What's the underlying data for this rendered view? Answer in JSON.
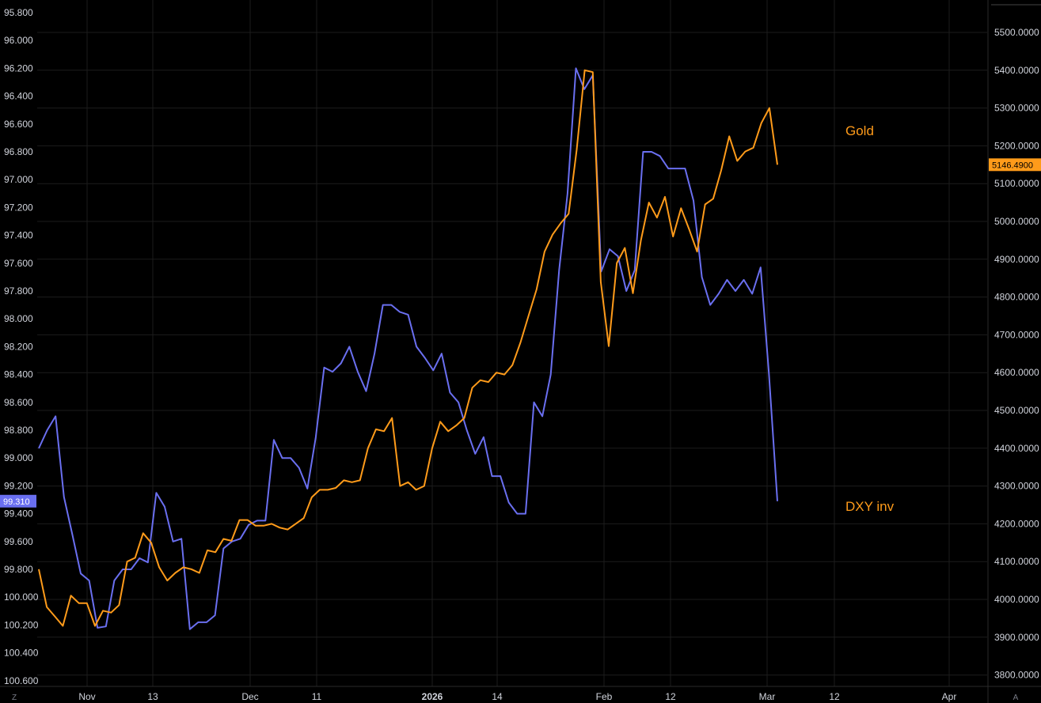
{
  "chart_data": {
    "type": "line",
    "background": "#000000",
    "grid": true,
    "left_axis": {
      "ticks": [
        "95.800",
        "96.000",
        "96.200",
        "96.400",
        "96.600",
        "96.800",
        "97.000",
        "97.200",
        "97.400",
        "97.600",
        "97.800",
        "98.000",
        "98.200",
        "98.400",
        "98.600",
        "98.800",
        "99.000",
        "99.200",
        "99.400",
        "99.600",
        "99.800",
        "100.000",
        "100.200",
        "100.400",
        "100.600"
      ],
      "range": [
        95.8,
        100.6
      ],
      "inverted": true
    },
    "right_axis": {
      "ticks": [
        "5500.0000",
        "5400.0000",
        "5300.0000",
        "5200.0000",
        "5100.0000",
        "5000.0000",
        "4900.0000",
        "4800.0000",
        "4700.0000",
        "4600.0000",
        "4500.0000",
        "4400.0000",
        "4300.0000",
        "4200.0000",
        "4100.0000",
        "4000.0000",
        "3900.0000",
        "3800.0000"
      ],
      "range": [
        3800,
        5500
      ]
    },
    "x_ticks": [
      {
        "label": "Nov",
        "bold": false
      },
      {
        "label": "13",
        "bold": false
      },
      {
        "label": "Dec",
        "bold": false
      },
      {
        "label": "11",
        "bold": false
      },
      {
        "label": "2026",
        "bold": true
      },
      {
        "label": "14",
        "bold": false
      },
      {
        "label": "Feb",
        "bold": false
      },
      {
        "label": "12",
        "bold": false
      },
      {
        "label": "Mar",
        "bold": false
      },
      {
        "label": "12",
        "bold": false
      },
      {
        "label": "Apr",
        "bold": false
      }
    ],
    "corner_left": "Z",
    "corner_right": "A",
    "series": [
      {
        "name": "DXY inv",
        "axis": "left",
        "color": "#6a6ff0",
        "last_value": "99.310",
        "values": [
          98.93,
          98.8,
          98.7,
          99.28,
          99.55,
          99.83,
          99.88,
          100.22,
          100.21,
          99.88,
          99.8,
          99.8,
          99.72,
          99.75,
          99.25,
          99.35,
          99.6,
          99.58,
          100.23,
          100.18,
          100.18,
          100.13,
          99.65,
          99.6,
          99.58,
          99.48,
          99.45,
          99.45,
          98.87,
          99.0,
          99.0,
          99.07,
          99.22,
          98.85,
          98.35,
          98.38,
          98.32,
          98.2,
          98.38,
          98.52,
          98.25,
          97.9,
          97.9,
          97.95,
          97.97,
          98.2,
          98.28,
          98.37,
          98.25,
          98.53,
          98.6,
          98.8,
          98.97,
          98.85,
          99.13,
          99.13,
          99.32,
          99.4,
          99.4,
          98.6,
          98.7,
          98.4,
          97.65,
          97.1,
          96.2,
          96.35,
          96.25,
          97.66,
          97.5,
          97.55,
          97.8,
          97.65,
          96.8,
          96.8,
          96.83,
          96.92,
          96.92,
          96.92,
          97.15,
          97.7,
          97.9,
          97.82,
          97.72,
          97.8,
          97.72,
          97.82,
          97.63,
          98.4,
          99.31
        ]
      },
      {
        "name": "Gold",
        "axis": "right",
        "color": "#ff9b1a",
        "last_value": "5146.4900",
        "values": [
          4080,
          3980,
          3955,
          3930,
          4010,
          3990,
          3990,
          3930,
          3970,
          3965,
          3985,
          4100,
          4110,
          4175,
          4150,
          4085,
          4050,
          4070,
          4085,
          4080,
          4070,
          4130,
          4125,
          4160,
          4155,
          4210,
          4210,
          4195,
          4195,
          4200,
          4190,
          4185,
          4200,
          4215,
          4270,
          4290,
          4290,
          4295,
          4315,
          4310,
          4315,
          4400,
          4450,
          4445,
          4480,
          4300,
          4310,
          4290,
          4300,
          4400,
          4470,
          4445,
          4460,
          4480,
          4560,
          4580,
          4575,
          4600,
          4595,
          4620,
          4680,
          4750,
          4820,
          4920,
          4965,
          4995,
          5020,
          5190,
          5400,
          5395,
          4840,
          4670,
          4890,
          4930,
          4810,
          4950,
          5050,
          5010,
          5065,
          4960,
          5035,
          4980,
          4920,
          5045,
          5060,
          5135,
          5225,
          5160,
          5185,
          5195,
          5260,
          5300,
          5150
        ]
      }
    ]
  }
}
